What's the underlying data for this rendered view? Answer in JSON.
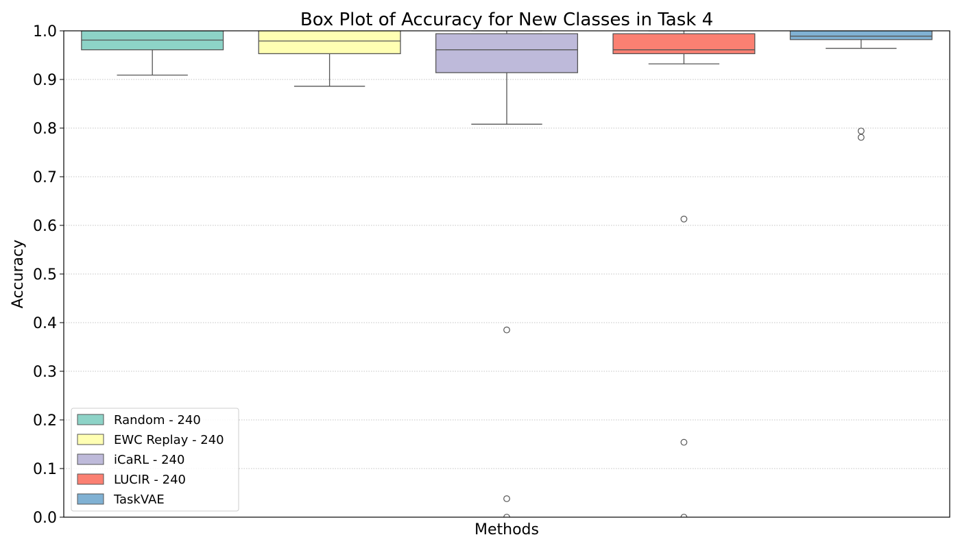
{
  "chart_data": {
    "type": "box",
    "title": "Box Plot of Accuracy for New Classes in Task 4",
    "xlabel": "Methods",
    "ylabel": "Accuracy",
    "ylim": [
      0,
      1
    ],
    "yticks": [
      0.0,
      0.1,
      0.2,
      0.3,
      0.4,
      0.5,
      0.6,
      0.7,
      0.8,
      0.9,
      1.0
    ],
    "ytick_labels": [
      "0.0",
      "0.1",
      "0.2",
      "0.3",
      "0.4",
      "0.5",
      "0.6",
      "0.7",
      "0.8",
      "0.9",
      "1.0"
    ],
    "grid": "horizontal dotted",
    "legend_position": "lower-left",
    "series": [
      {
        "name": "Random - 240",
        "color": "#8dd3c7",
        "whislo": 0.909,
        "q1": 0.961,
        "median": 0.981,
        "q3": 1.0,
        "whishi": 1.0,
        "fliers": []
      },
      {
        "name": "EWC Replay - 240",
        "color": "#ffffb3",
        "whislo": 0.886,
        "q1": 0.953,
        "median": 0.979,
        "q3": 1.0,
        "whishi": 1.0,
        "fliers": []
      },
      {
        "name": "iCaRL - 240",
        "color": "#bebada",
        "whislo": 0.808,
        "q1": 0.914,
        "median": 0.961,
        "q3": 0.994,
        "whishi": 1.0,
        "fliers": [
          0.385,
          0.038,
          0.0
        ]
      },
      {
        "name": "LUCIR - 240",
        "color": "#fb8072",
        "whislo": 0.932,
        "q1": 0.953,
        "median": 0.961,
        "q3": 0.994,
        "whishi": 1.0,
        "fliers": [
          0.613,
          0.154,
          0.0
        ]
      },
      {
        "name": "TaskVAE",
        "color": "#80b1d3",
        "whislo": 0.964,
        "q1": 0.982,
        "median": 0.989,
        "q3": 1.0,
        "whishi": 1.0,
        "fliers": [
          0.794,
          0.781
        ]
      }
    ]
  }
}
